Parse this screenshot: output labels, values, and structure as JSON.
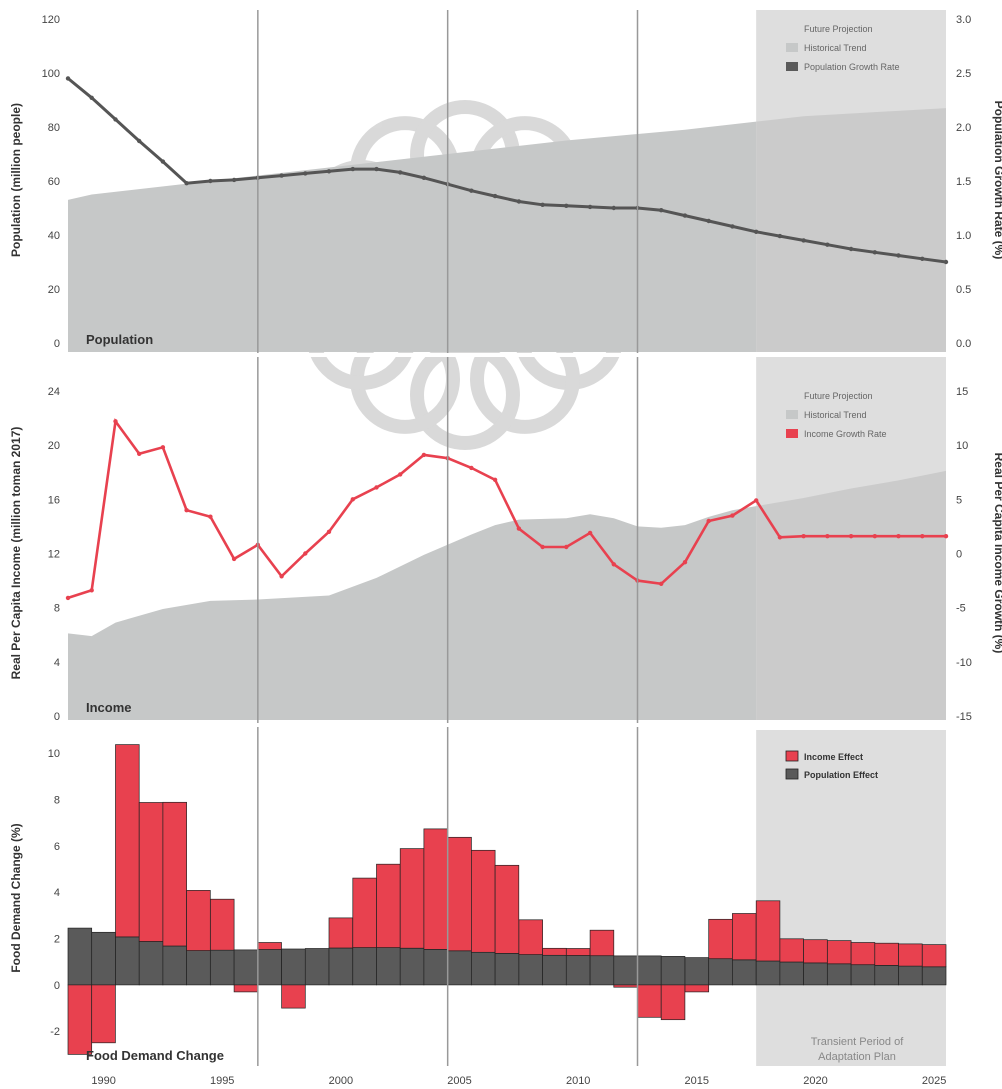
{
  "colors": {
    "future": "#dedede",
    "historical": "#c6c8c8",
    "growth_line": "#555555",
    "income_line": "#e8414f",
    "income_effect": "#e8414f",
    "population_effect": "#5a5a5a",
    "divider": "#999999"
  },
  "chart_data": [
    {
      "type": "area",
      "label": "Population",
      "ylabel": "Population (million people)",
      "ylabel2": "Population Growth Rate (%)",
      "ylim": [
        0,
        120
      ],
      "y_ticks": [
        "0",
        "20",
        "40",
        "60",
        "80",
        "100",
        "120"
      ],
      "ylim2": [
        0,
        3
      ],
      "y2_ticks": [
        "0.0",
        "0.5",
        "1.0",
        "1.5",
        "2.0",
        "2.5",
        "3.0"
      ],
      "grid": false,
      "legend": [
        "Future Projection",
        "Historical Trend",
        "Population Growth Rate"
      ],
      "legend_placement": "top-right",
      "projection_start": 2018,
      "area": {
        "x": [
          1989,
          1990,
          1995,
          2000,
          2005,
          2010,
          2015,
          2018,
          2020,
          2026
        ],
        "values": [
          53,
          55,
          60,
          65,
          70,
          75,
          79,
          82,
          84,
          87
        ]
      },
      "line": {
        "name": "Population Growth Rate",
        "x": [
          1989,
          1990,
          1991,
          1992,
          1993,
          1994,
          1995,
          1996,
          1997,
          1998,
          1999,
          2000,
          2001,
          2002,
          2003,
          2004,
          2005,
          2006,
          2007,
          2008,
          2009,
          2010,
          2011,
          2012,
          2013,
          2014,
          2015,
          2016,
          2017,
          2018,
          2019,
          2020,
          2021,
          2022,
          2023,
          2024,
          2025,
          2026
        ],
        "values": [
          2.45,
          2.27,
          2.07,
          1.87,
          1.68,
          1.48,
          1.5,
          1.51,
          1.53,
          1.55,
          1.57,
          1.59,
          1.61,
          1.61,
          1.58,
          1.53,
          1.47,
          1.41,
          1.36,
          1.31,
          1.28,
          1.27,
          1.26,
          1.25,
          1.25,
          1.23,
          1.18,
          1.13,
          1.08,
          1.03,
          0.99,
          0.95,
          0.91,
          0.87,
          0.84,
          0.81,
          0.78,
          0.75
        ]
      }
    },
    {
      "type": "area",
      "label": "Income",
      "ylabel": "Real Per Capita Income (million toman 2017)",
      "ylabel2": "Real Per Capita Income Growth (%)",
      "ylim": [
        0,
        24
      ],
      "y_ticks": [
        "0",
        "4",
        "8",
        "12",
        "16",
        "20",
        "24"
      ],
      "ylim2": [
        -15,
        15
      ],
      "y2_ticks": [
        "-15",
        "-10",
        "-5",
        "0",
        "5",
        "10",
        "15"
      ],
      "grid": false,
      "legend": [
        "Future Projection",
        "Historical Trend",
        "Income Growth Rate"
      ],
      "legend_placement": "top-right",
      "projection_start": 2018,
      "area": {
        "x": [
          1989,
          1990,
          1991,
          1993,
          1995,
          1997,
          2000,
          2002,
          2004,
          2006,
          2007,
          2008,
          2010,
          2011,
          2012,
          2013,
          2014,
          2015,
          2016,
          2017,
          2018,
          2020,
          2022,
          2024,
          2026
        ],
        "values": [
          6.1,
          5.9,
          6.9,
          7.9,
          8.5,
          8.6,
          8.9,
          10.2,
          11.9,
          13.4,
          14.1,
          14.5,
          14.6,
          14.9,
          14.6,
          14.0,
          13.9,
          14.1,
          14.7,
          15.2,
          15.5,
          16.1,
          16.8,
          17.4,
          18.1
        ]
      },
      "line": {
        "name": "Income Growth Rate",
        "x": [
          1989,
          1990,
          1991,
          1992,
          1993,
          1994,
          1995,
          1996,
          1997,
          1998,
          1999,
          2000,
          2001,
          2002,
          2003,
          2004,
          2005,
          2006,
          2007,
          2008,
          2009,
          2010,
          2011,
          2012,
          2013,
          2014,
          2015,
          2016,
          2017,
          2018,
          2019,
          2020,
          2021,
          2022,
          2023,
          2024,
          2025,
          2026
        ],
        "values": [
          -4.1,
          -3.4,
          12.2,
          9.2,
          9.8,
          4.0,
          3.4,
          -0.5,
          0.8,
          -2.1,
          0.0,
          2.0,
          5.0,
          6.1,
          7.3,
          9.1,
          8.8,
          7.9,
          6.8,
          2.3,
          0.6,
          0.6,
          1.9,
          -1.0,
          -2.5,
          -2.8,
          -0.8,
          3.0,
          3.5,
          4.9,
          1.5,
          1.6,
          1.6,
          1.6,
          1.6,
          1.6,
          1.6,
          1.6
        ]
      }
    },
    {
      "type": "bar",
      "label": "Food Demand Change",
      "ylabel": "Food Demand Change (%)",
      "ylim": [
        -3.5,
        11
      ],
      "y_ticks": [
        "-2",
        "0",
        "2",
        "4",
        "6",
        "8",
        "10"
      ],
      "grid": false,
      "legend": [
        "Income Effect",
        "Population Effect"
      ],
      "legend_placement": "top-right",
      "shaded_from": 2018,
      "shaded_label": [
        "Transient Period of",
        "Adaptation Plan"
      ],
      "categories": [
        1989,
        1990,
        1991,
        1992,
        1993,
        1994,
        1995,
        1996,
        1997,
        1998,
        1999,
        2000,
        2001,
        2002,
        2003,
        2004,
        2005,
        2006,
        2007,
        2008,
        2009,
        2010,
        2011,
        2012,
        2013,
        2014,
        2015,
        2016,
        2017,
        2018,
        2019,
        2020,
        2021,
        2022,
        2023,
        2024,
        2025
      ],
      "series": [
        {
          "name": "Population Effect",
          "values": [
            2.45,
            2.27,
            2.07,
            1.87,
            1.68,
            1.48,
            1.5,
            1.51,
            1.53,
            1.55,
            1.57,
            1.59,
            1.61,
            1.61,
            1.58,
            1.53,
            1.47,
            1.41,
            1.36,
            1.31,
            1.28,
            1.27,
            1.26,
            1.25,
            1.25,
            1.23,
            1.18,
            1.13,
            1.08,
            1.03,
            0.99,
            0.95,
            0.91,
            0.87,
            0.84,
            0.81,
            0.78
          ]
        },
        {
          "name": "Income Effect",
          "values": [
            -3.0,
            -2.5,
            8.3,
            6.0,
            6.2,
            2.6,
            2.2,
            -0.3,
            0.3,
            -1.0,
            0.0,
            1.3,
            3.0,
            3.6,
            4.3,
            5.2,
            4.9,
            4.4,
            3.8,
            1.5,
            0.3,
            0.3,
            1.1,
            -0.1,
            -1.4,
            -1.5,
            -0.3,
            1.7,
            2.0,
            2.6,
            1.0,
            1.0,
            1.0,
            0.96,
            0.96,
            0.96,
            0.96
          ]
        }
      ],
      "x_ticks": [
        "1990",
        "1995",
        "2000",
        "2005",
        "2010",
        "2015",
        "2020",
        "2025"
      ],
      "x_tick_values": [
        1990,
        1995,
        2000,
        2005,
        2010,
        2015,
        2020,
        2025
      ]
    }
  ]
}
